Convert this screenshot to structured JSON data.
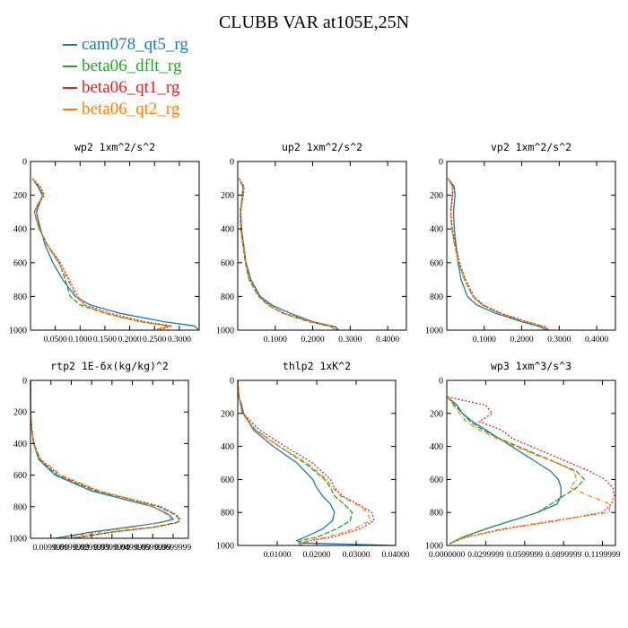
{
  "title": "CLUBB VAR at105E,25N",
  "legend": [
    {
      "label": "cam078_qt5_rg",
      "color": "#1f77b4"
    },
    {
      "label": "beta06_dflt_rg",
      "color": "#2ca02c"
    },
    {
      "label": "beta06_qt1_rg",
      "color": "#d62728"
    },
    {
      "label": "beta06_qt2_rg",
      "color": "#ff7f0e"
    }
  ],
  "chart_data": [
    {
      "type": "line",
      "title": "wp2  1xm^2/s^2",
      "xlim": [
        0,
        0.34
      ],
      "ylim": [
        1000,
        0
      ],
      "y_inverted": true,
      "xticks": [
        "0.0500",
        "0.1000",
        "0.1500",
        "0.2000",
        "0.2500",
        "0.3000"
      ],
      "yticks": [
        "0",
        "200",
        "400",
        "600",
        "800",
        "1000"
      ],
      "y": [
        100,
        150,
        200,
        250,
        300,
        400,
        500,
        600,
        700,
        800,
        850,
        900,
        950,
        975,
        1000
      ],
      "series": [
        {
          "name": "cam078_qt5_rg",
          "values": [
            0.004,
            0.015,
            0.024,
            0.018,
            0.012,
            0.02,
            0.03,
            0.045,
            0.065,
            0.09,
            0.12,
            0.18,
            0.27,
            0.33,
            0.34
          ]
        },
        {
          "name": "beta06_dflt_rg",
          "values": [
            0.004,
            0.018,
            0.026,
            0.016,
            0.008,
            0.018,
            0.035,
            0.058,
            0.07,
            0.08,
            0.1,
            0.15,
            0.22,
            0.28,
            0.25
          ]
        },
        {
          "name": "beta06_qt1_rg",
          "values": [
            0.004,
            0.02,
            0.028,
            0.016,
            0.008,
            0.018,
            0.035,
            0.06,
            0.078,
            0.095,
            0.11,
            0.16,
            0.23,
            0.285,
            0.26
          ]
        },
        {
          "name": "beta06_qt2_rg",
          "values": [
            0.004,
            0.018,
            0.025,
            0.015,
            0.007,
            0.017,
            0.034,
            0.056,
            0.075,
            0.092,
            0.108,
            0.15,
            0.22,
            0.28,
            0.25
          ]
        }
      ]
    },
    {
      "type": "line",
      "title": "up2  1xm^2/s^2",
      "xlim": [
        0,
        0.45
      ],
      "ylim": [
        1000,
        0
      ],
      "y_inverted": true,
      "xticks": [
        "0.1000",
        "0.2000",
        "0.3000",
        "0.4000"
      ],
      "yticks": [
        "0",
        "200",
        "400",
        "600",
        "800",
        "1000"
      ],
      "y": [
        100,
        150,
        200,
        300,
        400,
        500,
        600,
        700,
        800,
        850,
        900,
        950,
        980,
        1000
      ],
      "series": [
        {
          "name": "cam078_qt5_rg",
          "values": [
            0.003,
            0.014,
            0.012,
            0.008,
            0.01,
            0.016,
            0.022,
            0.035,
            0.06,
            0.09,
            0.14,
            0.2,
            0.26,
            0.27
          ]
        },
        {
          "name": "beta06_dflt_rg",
          "values": [
            0.003,
            0.016,
            0.014,
            0.006,
            0.008,
            0.014,
            0.02,
            0.03,
            0.055,
            0.08,
            0.12,
            0.19,
            0.25,
            0.26
          ]
        },
        {
          "name": "beta06_qt1_rg",
          "values": [
            0.003,
            0.017,
            0.015,
            0.007,
            0.009,
            0.016,
            0.022,
            0.033,
            0.06,
            0.085,
            0.125,
            0.2,
            0.26,
            0.265
          ]
        },
        {
          "name": "beta06_qt2_rg",
          "values": [
            0.003,
            0.015,
            0.013,
            0.006,
            0.008,
            0.015,
            0.021,
            0.031,
            0.057,
            0.082,
            0.122,
            0.195,
            0.255,
            0.262
          ]
        }
      ]
    },
    {
      "type": "line",
      "title": "vp2  1xm^2/s^2",
      "xlim": [
        0,
        0.45
      ],
      "ylim": [
        1000,
        0
      ],
      "y_inverted": true,
      "xticks": [
        "0.1000",
        "0.2000",
        "0.3000",
        "0.4000"
      ],
      "yticks": [
        "0",
        "200",
        "400",
        "600",
        "800",
        "1000"
      ],
      "y": [
        100,
        150,
        200,
        300,
        400,
        500,
        600,
        700,
        800,
        850,
        900,
        950,
        980,
        1000
      ],
      "series": [
        {
          "name": "cam078_qt5_rg",
          "values": [
            0.003,
            0.02,
            0.022,
            0.018,
            0.02,
            0.025,
            0.03,
            0.038,
            0.055,
            0.08,
            0.13,
            0.2,
            0.25,
            0.265
          ]
        },
        {
          "name": "beta06_dflt_rg",
          "values": [
            0.003,
            0.016,
            0.015,
            0.01,
            0.014,
            0.022,
            0.032,
            0.048,
            0.07,
            0.095,
            0.14,
            0.21,
            0.26,
            0.27
          ]
        },
        {
          "name": "beta06_qt1_rg",
          "values": [
            0.003,
            0.017,
            0.016,
            0.011,
            0.015,
            0.024,
            0.034,
            0.05,
            0.072,
            0.098,
            0.145,
            0.215,
            0.262,
            0.272
          ]
        },
        {
          "name": "beta06_qt2_rg",
          "values": [
            0.003,
            0.015,
            0.014,
            0.01,
            0.013,
            0.021,
            0.031,
            0.047,
            0.069,
            0.093,
            0.138,
            0.208,
            0.258,
            0.268
          ]
        }
      ]
    },
    {
      "type": "line",
      "title": "rtp2  1E-6x(kg/kg)^2",
      "xlim": [
        0,
        0.0775
      ],
      "ylim": [
        1000,
        0
      ],
      "y_inverted": true,
      "xticks": [
        "0.0099999",
        "0.0199999",
        "0.0299999",
        "0.0399999",
        "0.0499999",
        "0.0599999",
        "0.0699999"
      ],
      "yticks": [
        "0",
        "200",
        "400",
        "600",
        "800",
        "1000"
      ],
      "y": [
        0,
        200,
        300,
        400,
        500,
        600,
        700,
        750,
        800,
        850,
        880,
        900,
        930,
        960,
        1000
      ],
      "series": [
        {
          "name": "cam078_qt5_rg",
          "values": [
            0,
            0.0001,
            0.0005,
            0.0015,
            0.004,
            0.012,
            0.03,
            0.045,
            0.06,
            0.068,
            0.07,
            0.064,
            0.048,
            0.03,
            0.012
          ]
        },
        {
          "name": "beta06_dflt_rg",
          "values": [
            0,
            0.0001,
            0.0006,
            0.0016,
            0.0045,
            0.013,
            0.032,
            0.048,
            0.063,
            0.071,
            0.073,
            0.072,
            0.06,
            0.04,
            0.02
          ]
        },
        {
          "name": "beta06_qt1_rg",
          "values": [
            0,
            0.0001,
            0.0006,
            0.0017,
            0.0048,
            0.014,
            0.033,
            0.049,
            0.064,
            0.0715,
            0.0735,
            0.0725,
            0.061,
            0.041,
            0.021
          ]
        },
        {
          "name": "beta06_qt2_rg",
          "values": [
            0,
            0.0001,
            0.0006,
            0.0016,
            0.005,
            0.015,
            0.034,
            0.048,
            0.06,
            0.067,
            0.069,
            0.063,
            0.05,
            0.034,
            0.015
          ]
        }
      ]
    },
    {
      "type": "line",
      "title": "thlp2  1xK^2",
      "xlim": [
        0,
        0.04
      ],
      "ylim": [
        1000,
        0
      ],
      "y_inverted": true,
      "xticks": [
        "0.01000",
        "0.02000",
        "0.03000",
        "0.04000"
      ],
      "yticks": [
        "0",
        "200",
        "400",
        "600",
        "800",
        "1000"
      ],
      "y": [
        0,
        100,
        150,
        200,
        300,
        400,
        500,
        600,
        650,
        700,
        750,
        800,
        850,
        900,
        950,
        970,
        985,
        1000
      ],
      "series": [
        {
          "name": "cam078_qt5_rg",
          "values": [
            0,
            0.0003,
            0.001,
            0.0015,
            0.004,
            0.009,
            0.015,
            0.019,
            0.02,
            0.0215,
            0.0235,
            0.0245,
            0.024,
            0.0215,
            0.017,
            0.015,
            0.016,
            0.04
          ]
        },
        {
          "name": "beta06_dflt_rg",
          "values": [
            0,
            0.0003,
            0.0008,
            0.0012,
            0.0045,
            0.0105,
            0.017,
            0.022,
            0.0235,
            0.0245,
            0.027,
            0.029,
            0.0285,
            0.025,
            0.02,
            0.016,
            0.0155,
            0.016
          ]
        },
        {
          "name": "beta06_qt1_rg",
          "values": [
            0,
            0.0003,
            0.0008,
            0.0013,
            0.0055,
            0.012,
            0.019,
            0.0235,
            0.0245,
            0.0265,
            0.0305,
            0.034,
            0.0345,
            0.031,
            0.024,
            0.0185,
            0.0165,
            0.016
          ]
        },
        {
          "name": "beta06_qt2_rg",
          "values": [
            0,
            0.0003,
            0.0007,
            0.0011,
            0.0045,
            0.0105,
            0.0175,
            0.0225,
            0.024,
            0.026,
            0.03,
            0.033,
            0.0335,
            0.0295,
            0.0225,
            0.018,
            0.016,
            0.0155
          ]
        }
      ]
    },
    {
      "type": "line",
      "title": "wp3  1xm^3/s^3",
      "xlim": [
        0,
        0.13
      ],
      "ylim": [
        1000,
        0
      ],
      "y_inverted": true,
      "xticks": [
        "0.0000000",
        "0.0299999",
        "0.0599999",
        "0.0899999",
        "0.1199999"
      ],
      "yticks": [
        "0",
        "200",
        "400",
        "600",
        "800",
        "1000"
      ],
      "y": [
        100,
        150,
        200,
        250,
        300,
        350,
        400,
        450,
        500,
        550,
        600,
        650,
        700,
        750,
        800,
        850,
        900,
        950,
        990
      ],
      "series": [
        {
          "name": "cam078_qt5_rg",
          "values": [
            0.0005,
            0.008,
            0.012,
            0.02,
            0.03,
            0.04,
            0.05,
            0.06,
            0.07,
            0.08,
            0.086,
            0.088,
            0.088,
            0.085,
            0.07,
            0.05,
            0.03,
            0.012,
            0.002
          ]
        },
        {
          "name": "beta06_dflt_rg",
          "values": [
            0.0005,
            0.006,
            0.012,
            0.018,
            0.028,
            0.04,
            0.055,
            0.07,
            0.085,
            0.1,
            0.106,
            0.1,
            0.09,
            0.08,
            0.07,
            0.05,
            0.03,
            0.012,
            0.002
          ]
        },
        {
          "name": "beta06_qt1_rg",
          "values": [
            0.0005,
            0.03,
            0.035,
            0.025,
            0.042,
            0.05,
            0.065,
            0.08,
            0.095,
            0.11,
            0.122,
            0.128,
            0.129,
            0.127,
            0.12,
            0.085,
            0.045,
            0.015,
            0.002
          ]
        },
        {
          "name": "beta06_qt2_rg",
          "values": [
            0.0005,
            0.005,
            0.01,
            0.015,
            0.025,
            0.038,
            0.053,
            0.068,
            0.085,
            0.098,
            0.1,
            0.095,
            0.11,
            0.126,
            0.125,
            0.082,
            0.042,
            0.014,
            0.002
          ]
        }
      ]
    }
  ]
}
